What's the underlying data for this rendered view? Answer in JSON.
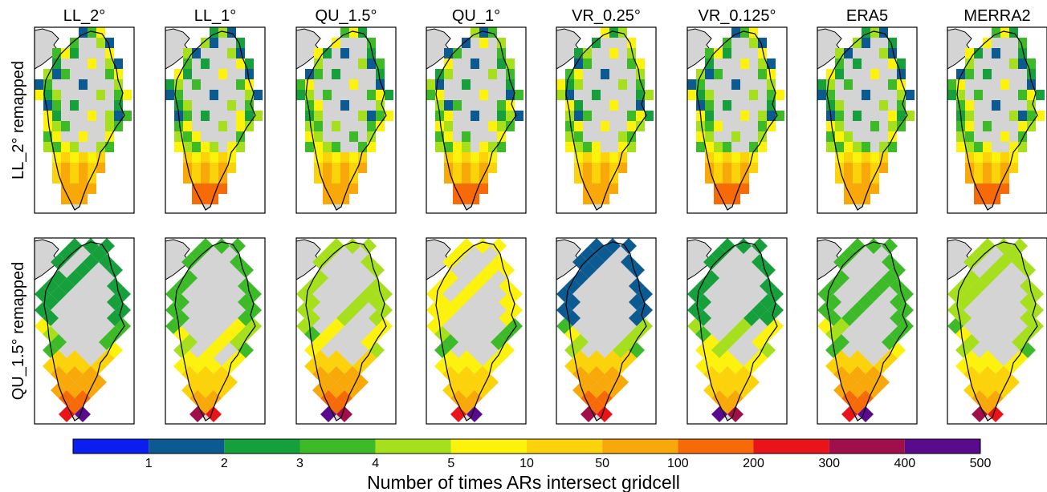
{
  "chart_data": {
    "type": "heatmap",
    "columns": [
      "LL_2°",
      "LL_1°",
      "QU_1.5°",
      "QU_1°",
      "VR_0.25°",
      "VR_0.125°",
      "ERA5",
      "MERRA2"
    ],
    "rows": [
      "LL_2° remapped",
      "QU_1.5° remapped"
    ],
    "colorbar": {
      "title": "Number of times ARs intersect gridcell",
      "tick_labels": [
        "1",
        "2",
        "3",
        "4",
        "5",
        "10",
        "50",
        "100",
        "200",
        "300",
        "400",
        "500"
      ],
      "colors": [
        "#0a1ef0",
        "#0b5a91",
        "#15a03c",
        "#3cba28",
        "#a6e01c",
        "#fcf20c",
        "#fcd20a",
        "#f8a808",
        "#f66a08",
        "#e8141a",
        "#a00f4a",
        "#5a0a8c"
      ]
    },
    "colors": {
      "greenland_fill": "#d4d4d4",
      "land_fill": "#d4d4d4",
      "border": "#000000"
    }
  }
}
